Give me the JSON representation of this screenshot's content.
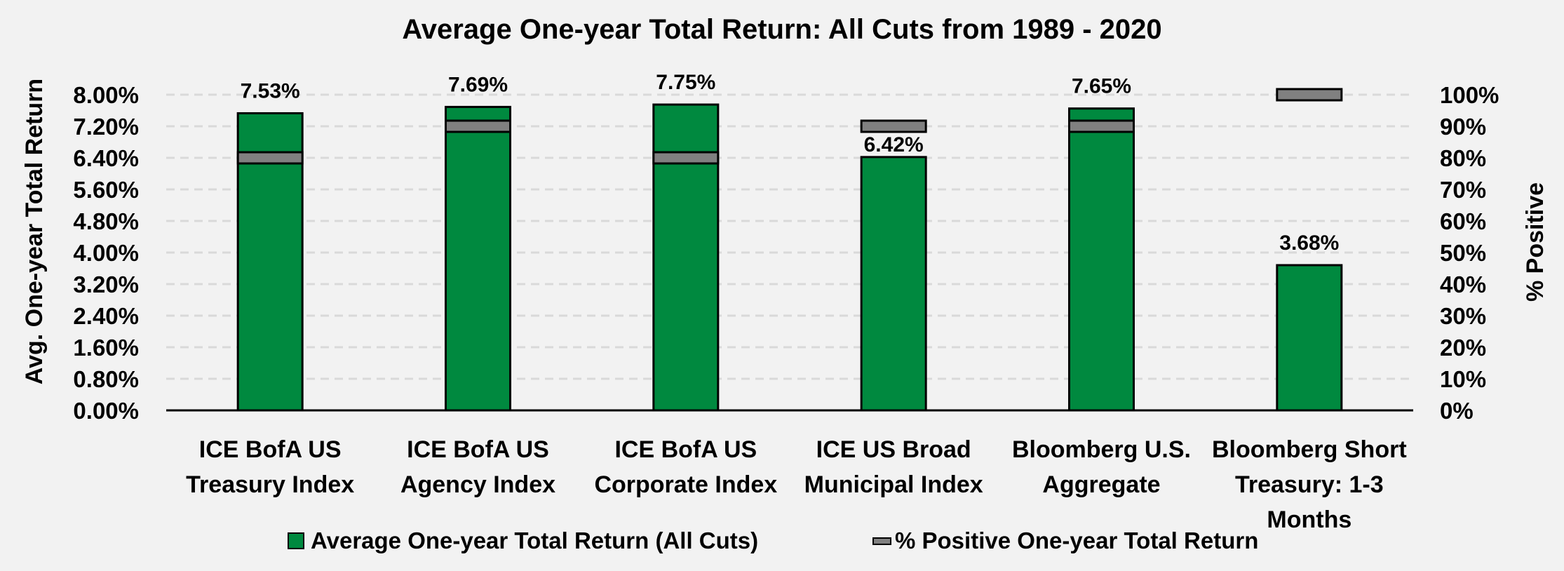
{
  "chart_data": {
    "type": "bar",
    "title": "Average One-year Total Return: All Cuts from 1989 - 2020",
    "ylabel": "Avg. One-year Total Return",
    "y2label": "% Positive",
    "ylim": [
      0,
      8.0
    ],
    "y2lim": [
      0,
      100
    ],
    "yticks": [
      "0.00%",
      "0.80%",
      "1.60%",
      "2.40%",
      "3.20%",
      "4.00%",
      "4.80%",
      "5.60%",
      "6.40%",
      "7.20%",
      "8.00%"
    ],
    "y2ticks": [
      "0%",
      "10%",
      "20%",
      "30%",
      "40%",
      "50%",
      "60%",
      "70%",
      "80%",
      "90%",
      "100%"
    ],
    "grid": true,
    "categories": [
      [
        "ICE BofA US",
        "Treasury Index"
      ],
      [
        "ICE BofA US",
        "Agency Index"
      ],
      [
        "ICE BofA US",
        "Corporate Index"
      ],
      [
        "ICE US Broad",
        "Municipal Index"
      ],
      [
        "Bloomberg U.S.",
        "Aggregate"
      ],
      [
        "Bloomberg Short",
        "Treasury: 1-3",
        "Months"
      ]
    ],
    "series": [
      {
        "name": "Average One-year Total Return (All Cuts)",
        "type": "bar",
        "color": "#00893f",
        "values": [
          7.53,
          7.69,
          7.75,
          6.42,
          7.65,
          3.68
        ],
        "labels": [
          "7.53%",
          "7.69%",
          "7.75%",
          "6.42%",
          "7.65%",
          "3.68%"
        ]
      },
      {
        "name": "% Positive One-year Total Return",
        "type": "marker",
        "axis": "secondary",
        "color": "#808080",
        "values": [
          80,
          90,
          80,
          90,
          90,
          100
        ]
      }
    ],
    "legend_position": "bottom"
  }
}
